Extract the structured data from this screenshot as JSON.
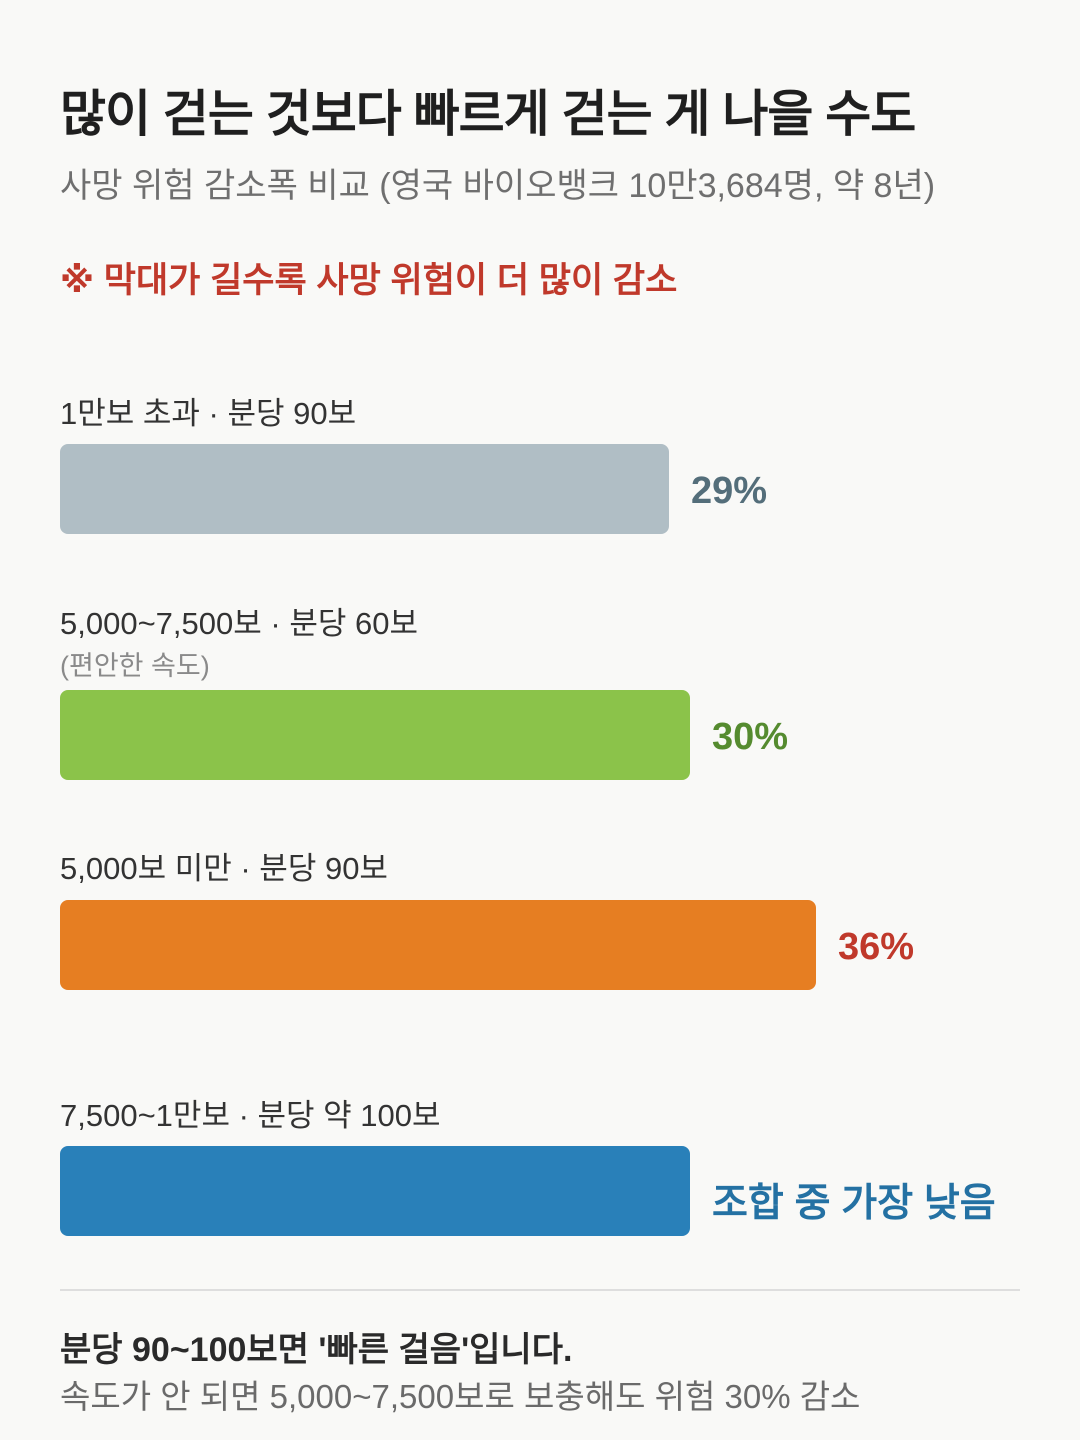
{
  "title": "많이 걷는 것보다 빠르게 걷는 게 나을 수도",
  "subtitle": "사망 위험 감소폭 비교 (영국 바이오뱅크 10만3,684명, 약 8년)",
  "note": "※ 막대가 길수록 사망 위험이 더 많이 감소",
  "chart_data": {
    "type": "bar",
    "orientation": "horizontal",
    "title": "많이 걷는 것보다 빠르게 걷는 게 나을 수도",
    "subtitle": "사망 위험 감소폭 비교 (영국 바이오뱅크 10만3,684명, 약 8년)",
    "categories": [
      "1만보 초과 · 분당 90보",
      "5,000~7,500보 · 분당 60보",
      "5,000보 미만 · 분당 90보",
      "7,500~1만보 · 분당 약 100보"
    ],
    "category_notes": [
      "",
      "(편안한 속도)",
      "",
      ""
    ],
    "values": [
      29,
      30,
      36,
      null
    ],
    "value_labels": [
      "29%",
      "30%",
      "36%",
      "조합 중 가장 낮음"
    ],
    "bar_colors": [
      "#b0bec5",
      "#8bc34a",
      "#e67e22",
      "#2980b9"
    ],
    "label_colors": [
      "#546e7a",
      "#558b2f",
      "#c0392b",
      "#2471a3"
    ],
    "xlim": [
      0,
      36
    ],
    "grid": false,
    "legend": "none"
  },
  "footer": {
    "bold": "분당 90~100보면 '빠른 걸음'입니다.",
    "text": "속도가 안 되면 5,000~7,500보로 보충해도 위험 30% 감소"
  }
}
